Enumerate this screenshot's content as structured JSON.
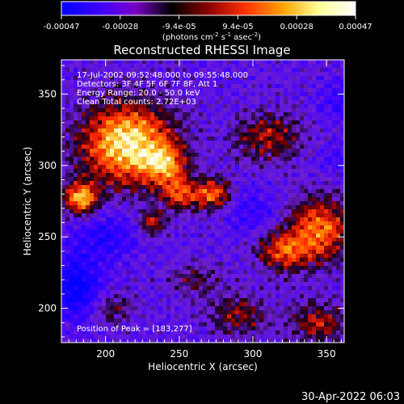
{
  "colorbar": {
    "ticks": [
      "-0.00047",
      "-0.00028",
      "-9.4e-05",
      "9.4e-05",
      "0.00028",
      "0.00047"
    ],
    "units_parts": [
      "(photons cm",
      "-2",
      " s",
      "-1",
      " asec",
      "-2",
      ")"
    ],
    "palette": [
      "#0000ff",
      "#3c00ff",
      "#7800c8",
      "#000000",
      "#8c0000",
      "#ff3200",
      "#ffa000",
      "#ffff96",
      "#ffffff"
    ]
  },
  "chart_data": {
    "type": "heatmap",
    "title": "Reconstructed RHESSI Image",
    "xlabel": "Heliocentric X (arcsec)",
    "ylabel": "Heliocentric Y (arcsec)",
    "xlim": [
      170,
      362
    ],
    "ylim": [
      176,
      374
    ],
    "xticks": [
      200,
      250,
      300,
      350
    ],
    "yticks": [
      200,
      250,
      300,
      350
    ],
    "annotations": [
      "17-Jul-2002 09:52:48.000 to 09:55:48.000",
      "Detectors: 3F 4F 5F 6F 7F 8F, Att 1",
      "Energy Range: 20.0 - 50.0 keV",
      "Clean    Total counts: 2.72E+03"
    ],
    "peak_label": "Position of Peak = [183,277]",
    "peak": [
      183,
      277
    ],
    "sources": [
      {
        "x": 215,
        "y": 315,
        "sx": 22,
        "sy": 20,
        "amp": 1.0
      },
      {
        "x": 183,
        "y": 277,
        "sx": 8,
        "sy": 8,
        "amp": 0.85
      },
      {
        "x": 240,
        "y": 300,
        "sx": 10,
        "sy": 10,
        "amp": 0.55
      },
      {
        "x": 272,
        "y": 280,
        "sx": 9,
        "sy": 8,
        "amp": 0.7
      },
      {
        "x": 250,
        "y": 280,
        "sx": 8,
        "sy": 8,
        "amp": 0.55
      },
      {
        "x": 310,
        "y": 320,
        "sx": 16,
        "sy": 12,
        "amp": 0.45
      },
      {
        "x": 345,
        "y": 255,
        "sx": 16,
        "sy": 16,
        "amp": 0.7
      },
      {
        "x": 320,
        "y": 240,
        "sx": 12,
        "sy": 10,
        "amp": 0.55
      },
      {
        "x": 232,
        "y": 260,
        "sx": 6,
        "sy": 6,
        "amp": 0.5
      },
      {
        "x": 290,
        "y": 195,
        "sx": 14,
        "sy": 10,
        "amp": 0.4
      },
      {
        "x": 345,
        "y": 190,
        "sx": 14,
        "sy": 10,
        "amp": 0.45
      },
      {
        "x": 205,
        "y": 200,
        "sx": 10,
        "sy": 8,
        "amp": 0.3
      },
      {
        "x": 260,
        "y": 220,
        "sx": 12,
        "sy": 8,
        "amp": 0.3
      }
    ],
    "negative_regions": [
      {
        "x": 180,
        "y": 215,
        "sx": 12,
        "sy": 16,
        "amp": 0.9
      },
      {
        "x": 200,
        "y": 250,
        "sx": 15,
        "sy": 12,
        "amp": 0.5
      },
      {
        "x": 300,
        "y": 268,
        "sx": 15,
        "sy": 12,
        "amp": 0.4
      },
      {
        "x": 360,
        "y": 345,
        "sx": 10,
        "sy": 10,
        "amp": 0.4
      },
      {
        "x": 355,
        "y": 305,
        "sx": 8,
        "sy": 8,
        "amp": 0.3
      }
    ]
  },
  "timestamp": "30-Apr-2022 06:03"
}
